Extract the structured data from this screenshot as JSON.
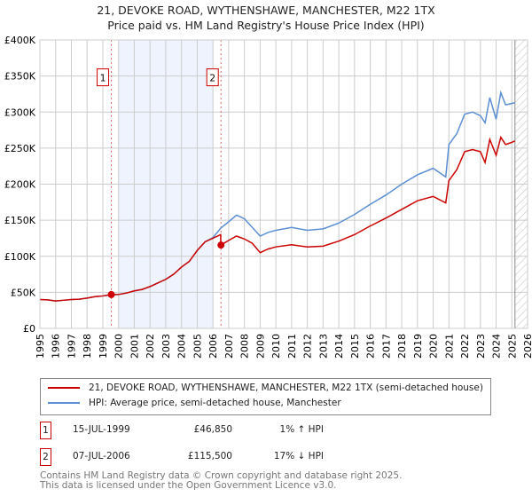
{
  "header": {
    "title": "21, DEVOKE ROAD, WYTHENSHAWE, MANCHESTER, M22 1TX",
    "subtitle": "Price paid vs. HM Land Registry's House Price Index (HPI)"
  },
  "chart_data": {
    "type": "line",
    "xlim": [
      1995,
      2026
    ],
    "ylim": [
      0,
      400000
    ],
    "yticks": [
      {
        "v": 0,
        "label": "£0"
      },
      {
        "v": 50000,
        "label": "£50K"
      },
      {
        "v": 100000,
        "label": "£100K"
      },
      {
        "v": 150000,
        "label": "£150K"
      },
      {
        "v": 200000,
        "label": "£200K"
      },
      {
        "v": 250000,
        "label": "£250K"
      },
      {
        "v": 300000,
        "label": "£300K"
      },
      {
        "v": 350000,
        "label": "£350K"
      },
      {
        "v": 400000,
        "label": "£400K"
      }
    ],
    "xticks": [
      "1995",
      "1996",
      "1997",
      "1998",
      "1999",
      "2000",
      "2001",
      "2002",
      "2003",
      "2004",
      "2005",
      "2006",
      "2007",
      "2008",
      "2009",
      "2010",
      "2011",
      "2012",
      "2013",
      "2014",
      "2015",
      "2016",
      "2017",
      "2018",
      "2019",
      "2020",
      "2021",
      "2022",
      "2023",
      "2024",
      "2025",
      "2026"
    ],
    "grid": true,
    "shaded_range": [
      2000,
      2006
    ],
    "forecast_hatch_from": 2025.2,
    "series": [
      {
        "name": "21, DEVOKE ROAD, WYTHENSHAWE, MANCHESTER, M22 1TX (semi-detached house)",
        "color": "#cc0000",
        "x": [
          1995,
          1995.5,
          1996,
          1996.5,
          1997,
          1997.5,
          1998,
          1998.5,
          1999,
          1999.54,
          2000,
          2000.5,
          2001,
          2001.5,
          2002,
          2002.5,
          2003,
          2003.5,
          2004,
          2004.5,
          2005,
          2005.5,
          2006,
          2006.49,
          2006.5,
          2007,
          2007.5,
          2008,
          2008.5,
          2009,
          2009.5,
          2010,
          2011,
          2012,
          2013,
          2014,
          2015,
          2016,
          2017,
          2018,
          2019,
          2020,
          2020.8,
          2021,
          2021.5,
          2022,
          2022.5,
          2023,
          2023.3,
          2023.6,
          2024,
          2024.3,
          2024.6,
          2025,
          2025.2
        ],
        "y": [
          40000,
          39500,
          38000,
          39000,
          40000,
          40500,
          42000,
          44000,
          45000,
          46850,
          47000,
          49000,
          52000,
          54000,
          58000,
          63000,
          68000,
          75000,
          85000,
          93000,
          108000,
          120000,
          125000,
          130000,
          115500,
          122000,
          128000,
          124000,
          118000,
          105000,
          110000,
          113000,
          116000,
          113000,
          114000,
          121000,
          130000,
          142000,
          153000,
          165000,
          177000,
          183000,
          174000,
          205000,
          220000,
          245000,
          248000,
          245000,
          230000,
          262000,
          240000,
          265000,
          255000,
          258000,
          260000
        ]
      },
      {
        "name": "HPI: Average price, semi-detached house, Manchester",
        "color": "#5b8fd4",
        "x": [
          1995,
          1995.5,
          1996,
          1996.5,
          1997,
          1997.5,
          1998,
          1998.5,
          1999,
          1999.54,
          2000,
          2000.5,
          2001,
          2001.5,
          2002,
          2002.5,
          2003,
          2003.5,
          2004,
          2004.5,
          2005,
          2005.5,
          2006,
          2006.5,
          2007,
          2007.5,
          2008,
          2008.5,
          2009,
          2009.5,
          2010,
          2011,
          2012,
          2013,
          2014,
          2015,
          2016,
          2017,
          2018,
          2019,
          2020,
          2020.8,
          2021,
          2021.5,
          2022,
          2022.5,
          2023,
          2023.3,
          2023.6,
          2024,
          2024.3,
          2024.6,
          2025,
          2025.2
        ],
        "y": [
          40000,
          39500,
          38000,
          39000,
          40000,
          40500,
          42000,
          44000,
          45000,
          46400,
          47000,
          49000,
          52000,
          54000,
          58000,
          63000,
          68000,
          75000,
          85000,
          93000,
          108000,
          120000,
          126000,
          139000,
          148000,
          157000,
          152000,
          140000,
          128000,
          133000,
          136000,
          140000,
          136000,
          138000,
          146000,
          158000,
          172000,
          185000,
          200000,
          213000,
          222000,
          210000,
          255000,
          270000,
          297000,
          300000,
          295000,
          285000,
          320000,
          290000,
          327000,
          310000,
          312000,
          313000
        ]
      }
    ],
    "annotations": [
      {
        "label": "1",
        "x": 1999.54,
        "y": 46850
      },
      {
        "label": "2",
        "x": 2006.51,
        "y": 115500
      }
    ]
  },
  "legend": {
    "series1": "21, DEVOKE ROAD, WYTHENSHAWE, MANCHESTER, M22 1TX (semi-detached house)",
    "series2": "HPI: Average price, semi-detached house, Manchester"
  },
  "sales": [
    {
      "num": "1",
      "date": "15-JUL-1999",
      "price": "£46,850",
      "hpi": "1% ↑ HPI"
    },
    {
      "num": "2",
      "date": "07-JUL-2006",
      "price": "£115,500",
      "hpi": "17% ↓ HPI"
    }
  ],
  "footer": {
    "line1": "Contains HM Land Registry data © Crown copyright and database right 2025.",
    "line2": "This data is licensed under the Open Government Licence v3.0."
  }
}
